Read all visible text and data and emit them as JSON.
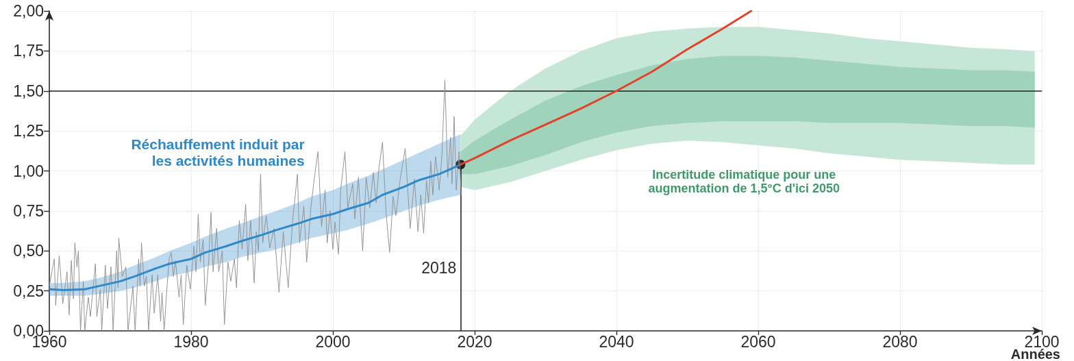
{
  "chart_data": {
    "type": "line",
    "xlabel": "Années",
    "xlim": [
      1960,
      2100
    ],
    "xticks": [
      1960,
      1980,
      2000,
      2020,
      2040,
      2060,
      2080,
      2100
    ],
    "ylim": [
      0,
      2
    ],
    "yticks": [
      {
        "value": 0,
        "label": "0,00"
      },
      {
        "value": 0.25,
        "label": "0,25"
      },
      {
        "value": 0.5,
        "label": "0,50"
      },
      {
        "value": 0.75,
        "label": "0,75"
      },
      {
        "value": 1,
        "label": "1,00"
      },
      {
        "value": 1.25,
        "label": "1,25"
      },
      {
        "value": 1.5,
        "label": "1,50"
      },
      {
        "value": 1.75,
        "label": "1,75"
      },
      {
        "value": 2,
        "label": "2,00"
      }
    ],
    "grid": true,
    "series": [
      {
        "type": "area",
        "color": "#c6e6d7",
        "x": [
          2018,
          2020,
          2025,
          2030,
          2035,
          2040,
          2045,
          2050,
          2055,
          2060,
          2065,
          2070,
          2075,
          2080,
          2085,
          2090,
          2095,
          2099
        ],
        "values": [
          null,
          null,
          null,
          null,
          null,
          null,
          null,
          null,
          null,
          null,
          null,
          null,
          null,
          null,
          null,
          null,
          null,
          null
        ],
        "upper": [
          1.22,
          1.32,
          1.5,
          1.64,
          1.75,
          1.83,
          1.87,
          1.89,
          1.9,
          1.9,
          1.88,
          1.86,
          1.83,
          1.81,
          1.79,
          1.77,
          1.76,
          1.75
        ],
        "lower": [
          0.9,
          0.88,
          0.93,
          1.0,
          1.07,
          1.13,
          1.17,
          1.19,
          1.18,
          1.16,
          1.14,
          1.11,
          1.09,
          1.07,
          1.06,
          1.05,
          1.04,
          1.04
        ]
      },
      {
        "type": "area",
        "color": "#9fd3bb",
        "x": [
          2018,
          2020,
          2025,
          2030,
          2035,
          2040,
          2045,
          2050,
          2055,
          2060,
          2065,
          2070,
          2075,
          2080,
          2085,
          2090,
          2095,
          2099
        ],
        "values": [
          null,
          null,
          null,
          null,
          null,
          null,
          null,
          null,
          null,
          null,
          null,
          null,
          null,
          null,
          null,
          null,
          null,
          null
        ],
        "upper": [
          1.12,
          1.19,
          1.32,
          1.44,
          1.53,
          1.6,
          1.66,
          1.7,
          1.72,
          1.72,
          1.71,
          1.69,
          1.67,
          1.65,
          1.64,
          1.63,
          1.63,
          1.62
        ],
        "lower": [
          0.98,
          0.98,
          1.03,
          1.1,
          1.18,
          1.24,
          1.28,
          1.3,
          1.31,
          1.31,
          1.31,
          1.3,
          1.3,
          1.3,
          1.29,
          1.28,
          1.28,
          1.27
        ]
      },
      {
        "color": "#949494",
        "x": [
          1960.0,
          1960.7,
          1960.9,
          1961.4,
          1961.9,
          1962.5,
          1962.8,
          1963.1,
          1963.4,
          1963.6,
          1963.9,
          1964.1,
          1964.4,
          1964.8,
          1965.0,
          1965.5,
          1965.8,
          1966.5,
          1966.7,
          1967.2,
          1967.4,
          1967.9,
          1968.2,
          1968.7,
          1969.0,
          1969.5,
          1969.7,
          1969.8,
          1970.3,
          1970.8,
          1971.1,
          1971.8,
          1972.1,
          1972.6,
          1972.8,
          1973.0,
          1973.4,
          1973.7,
          1974.0,
          1974.5,
          1974.8,
          1975.3,
          1975.7,
          1975.9,
          1976.2,
          1976.5,
          1976.9,
          1977.2,
          1977.5,
          1977.8,
          1978.3,
          1978.6,
          1978.9,
          1979.4,
          1979.9,
          1980.4,
          1980.7,
          1981.0,
          1981.3,
          1981.7,
          1982.0,
          1982.5,
          1982.8,
          1983.1,
          1983.6,
          1983.9,
          1984.4,
          1984.7,
          1985.2,
          1985.6,
          1986.1,
          1986.4,
          1986.8,
          1987.2,
          1987.7,
          1988.0,
          1988.4,
          1988.9,
          1989.2,
          1989.5,
          1989.8,
          1990.1,
          1990.6,
          1991.1,
          1991.7,
          1992.4,
          1993.0,
          1993.7,
          1994.3,
          1995.0,
          1995.3,
          1995.9,
          1996.3,
          1996.9,
          1997.4,
          1997.9,
          1998.4,
          1998.9,
          1999.2,
          1999.6,
          2000.0,
          2000.3,
          2000.8,
          2001.1,
          2001.7,
          2002.1,
          2002.8,
          2003.1,
          2003.6,
          2004.2,
          2004.7,
          2005.2,
          2005.7,
          2006.1,
          2006.5,
          2007.0,
          2007.5,
          2008.0,
          2008.5,
          2008.9,
          2009.5,
          2010.2,
          2010.9,
          2011.5,
          2012.0,
          2012.4,
          2012.8,
          2013.2,
          2013.5,
          2013.8,
          2014.1,
          2014.5,
          2015.0,
          2015.4,
          2015.8,
          2016.2,
          2016.6,
          2016.8,
          2017.1,
          2017.4,
          2017.8,
          2018.1
        ],
        "values": [
          0.28,
          0.45,
          0.16,
          0.47,
          0.17,
          0.37,
          0.1,
          0.44,
          0.2,
          0.55,
          0.4,
          0.5,
          0.0,
          0.31,
          0.0,
          0.21,
          0.09,
          0.42,
          0.09,
          0.26,
          0.0,
          0.41,
          0.14,
          0.4,
          0.0,
          0.5,
          0.27,
          0.58,
          0.34,
          0.4,
          0.0,
          0.28,
          0.0,
          0.45,
          0.28,
          0.55,
          0.28,
          0.34,
          0.0,
          0.35,
          0.11,
          0.35,
          0.06,
          0.24,
          0.0,
          0.21,
          0.45,
          0.49,
          0.34,
          0.44,
          0.21,
          0.35,
          0.04,
          0.41,
          0.26,
          0.53,
          0.37,
          0.73,
          0.43,
          0.57,
          0.16,
          0.45,
          0.74,
          0.37,
          0.64,
          0.37,
          0.5,
          0.04,
          0.43,
          0.31,
          0.45,
          0.27,
          0.69,
          0.51,
          0.79,
          0.44,
          0.69,
          0.3,
          0.62,
          0.5,
          0.98,
          0.55,
          0.72,
          0.52,
          0.64,
          0.24,
          0.62,
          0.27,
          0.68,
          0.98,
          0.55,
          0.78,
          0.43,
          0.77,
          0.96,
          1.12,
          0.65,
          0.88,
          0.55,
          0.75,
          0.51,
          0.68,
          0.48,
          0.88,
          1.12,
          0.77,
          0.92,
          0.7,
          0.96,
          0.5,
          0.96,
          0.77,
          0.99,
          0.8,
          1.02,
          1.18,
          0.74,
          0.49,
          0.84,
          0.72,
          0.95,
          1.14,
          0.64,
          0.95,
          0.62,
          0.85,
          0.61,
          0.94,
          0.8,
          1.06,
          0.85,
          1.09,
          0.88,
          1.11,
          1.57,
          0.96,
          1.21,
          0.92,
          1.34,
          0.88,
          1.12,
          0.85
        ]
      },
      {
        "name": "Réchauffement induit par les activités humaines",
        "color": "#2e88c9",
        "x": [
          1960,
          1962,
          1965,
          1967,
          1970,
          1972,
          1975,
          1977,
          1980,
          1982,
          1985,
          1987,
          1990,
          1992,
          1995,
          1997,
          2000,
          2002,
          2005,
          2007,
          2010,
          2012,
          2015,
          2017,
          2018
        ],
        "values": [
          0.26,
          0.255,
          0.26,
          0.28,
          0.31,
          0.34,
          0.39,
          0.42,
          0.45,
          0.49,
          0.53,
          0.56,
          0.6,
          0.63,
          0.67,
          0.7,
          0.73,
          0.76,
          0.8,
          0.85,
          0.9,
          0.94,
          0.98,
          1.02,
          1.04
        ],
        "upper": [
          0.3,
          0.3,
          0.31,
          0.33,
          0.37,
          0.41,
          0.46,
          0.5,
          0.55,
          0.59,
          0.64,
          0.67,
          0.72,
          0.75,
          0.8,
          0.84,
          0.88,
          0.92,
          0.97,
          1.01,
          1.07,
          1.11,
          1.17,
          1.21,
          1.23
        ],
        "lower": [
          0.22,
          0.22,
          0.22,
          0.23,
          0.25,
          0.27,
          0.31,
          0.34,
          0.37,
          0.4,
          0.43,
          0.46,
          0.49,
          0.51,
          0.55,
          0.58,
          0.61,
          0.63,
          0.67,
          0.7,
          0.75,
          0.78,
          0.82,
          0.84,
          0.85
        ]
      },
      {
        "color": "#e4412b",
        "x": [
          2018,
          2020,
          2025,
          2030,
          2035,
          2040,
          2045,
          2050,
          2055,
          2059
        ],
        "values": [
          1.04,
          1.08,
          1.19,
          1.29,
          1.39,
          1.5,
          1.62,
          1.76,
          1.89,
          2.0
        ]
      }
    ],
    "ref_lines": [
      {
        "axis": "y",
        "value": 1.5,
        "color": "#222222"
      },
      {
        "axis": "x",
        "value": 2018,
        "label": "2018",
        "color": "#222222"
      }
    ],
    "annotations": [
      "Incertitude climatique pour une augmentation de 1,5°C d'ici 2050"
    ]
  }
}
